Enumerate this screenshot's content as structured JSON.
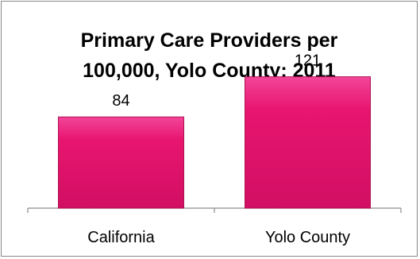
{
  "chart_data": {
    "type": "bar",
    "title_lines": [
      "Primary Care Providers per",
      "100,000, Yolo County: 2011"
    ],
    "categories": [
      "California",
      "Yolo County"
    ],
    "values": [
      84,
      121
    ],
    "data_labels": [
      "84",
      "121"
    ],
    "bar_color": "#e8156f",
    "bar_edge_color": "#b0104f",
    "axis_color": "#8c8c8c",
    "ylim": [
      0,
      150
    ],
    "grid": false,
    "legend": "none"
  }
}
